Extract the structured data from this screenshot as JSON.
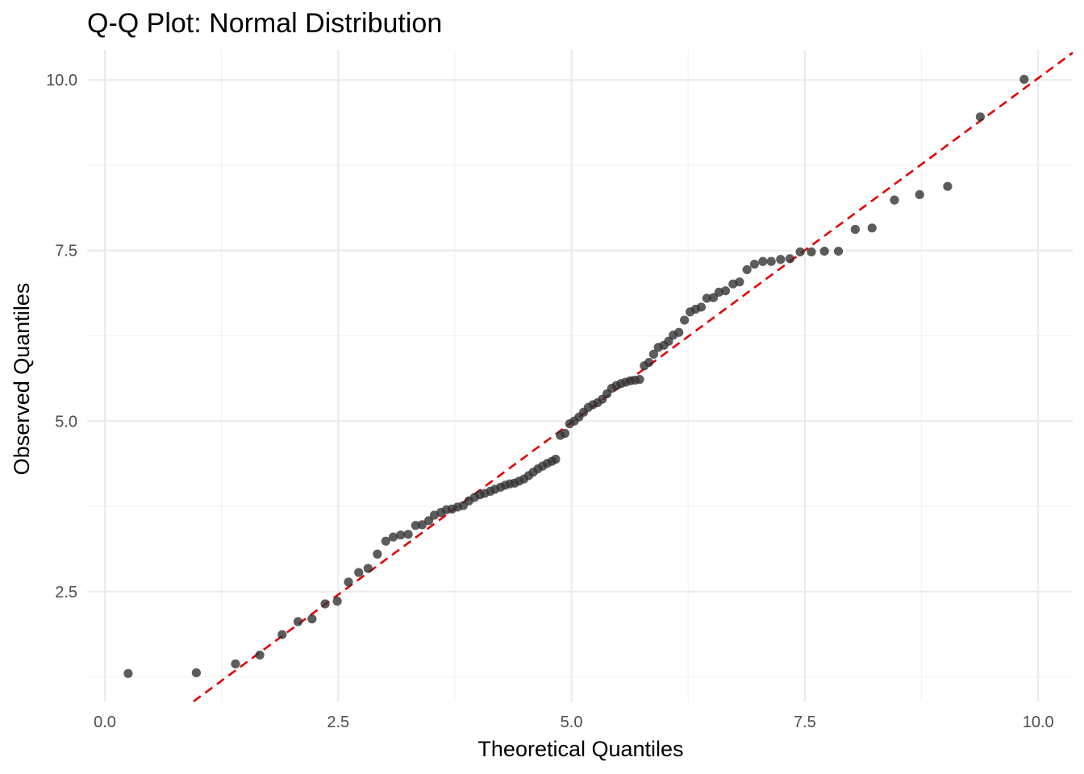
{
  "chart_data": {
    "type": "scatter",
    "title": "Q-Q Plot: Normal Distribution",
    "xlabel": "Theoretical Quantiles",
    "ylabel": "Observed Quantiles",
    "xlim": [
      -0.19,
      10.37
    ],
    "ylim": [
      0.89,
      10.44
    ],
    "x_ticks": [
      0.0,
      2.5,
      5.0,
      7.5,
      10.0
    ],
    "x_tick_labels": [
      "0.0",
      "2.5",
      "5.0",
      "7.5",
      "10.0"
    ],
    "y_ticks": [
      2.5,
      5.0,
      7.5,
      10.0
    ],
    "y_tick_labels": [
      "2.5",
      "5.0",
      "7.5",
      "10.0"
    ],
    "grid": true,
    "colors": {
      "points": "#333333",
      "reference_line": "#e60000",
      "grid": "#ebebeb"
    },
    "reference_line": {
      "style": "dashed",
      "x": [
        0.95,
        10.37
      ],
      "y": [
        0.89,
        10.4
      ]
    },
    "points": [
      [
        0.25,
        1.3
      ],
      [
        0.98,
        1.31
      ],
      [
        1.4,
        1.44
      ],
      [
        1.66,
        1.57
      ],
      [
        1.9,
        1.87
      ],
      [
        2.07,
        2.06
      ],
      [
        2.22,
        2.1
      ],
      [
        2.36,
        2.32
      ],
      [
        2.49,
        2.36
      ],
      [
        2.61,
        2.64
      ],
      [
        2.72,
        2.78
      ],
      [
        2.82,
        2.84
      ],
      [
        2.92,
        3.05
      ],
      [
        3.01,
        3.24
      ],
      [
        3.09,
        3.3
      ],
      [
        3.17,
        3.33
      ],
      [
        3.25,
        3.34
      ],
      [
        3.33,
        3.47
      ],
      [
        3.4,
        3.48
      ],
      [
        3.47,
        3.54
      ],
      [
        3.53,
        3.62
      ],
      [
        3.6,
        3.66
      ],
      [
        3.66,
        3.7
      ],
      [
        3.72,
        3.71
      ],
      [
        3.78,
        3.74
      ],
      [
        3.84,
        3.76
      ],
      [
        3.9,
        3.83
      ],
      [
        3.96,
        3.88
      ],
      [
        4.02,
        3.92
      ],
      [
        4.07,
        3.94
      ],
      [
        4.13,
        3.97
      ],
      [
        4.18,
        4.0
      ],
      [
        4.24,
        4.03
      ],
      [
        4.29,
        4.06
      ],
      [
        4.34,
        4.08
      ],
      [
        4.39,
        4.09
      ],
      [
        4.44,
        4.12
      ],
      [
        4.49,
        4.15
      ],
      [
        4.54,
        4.2
      ],
      [
        4.59,
        4.25
      ],
      [
        4.64,
        4.3
      ],
      [
        4.69,
        4.34
      ],
      [
        4.74,
        4.38
      ],
      [
        4.79,
        4.41
      ],
      [
        4.83,
        4.44
      ],
      [
        4.88,
        4.79
      ],
      [
        4.93,
        4.82
      ],
      [
        4.98,
        4.96
      ],
      [
        5.03,
        5.0
      ],
      [
        5.08,
        5.06
      ],
      [
        5.13,
        5.13
      ],
      [
        5.18,
        5.2
      ],
      [
        5.23,
        5.24
      ],
      [
        5.28,
        5.27
      ],
      [
        5.33,
        5.32
      ],
      [
        5.38,
        5.4
      ],
      [
        5.43,
        5.48
      ],
      [
        5.48,
        5.52
      ],
      [
        5.53,
        5.55
      ],
      [
        5.58,
        5.57
      ],
      [
        5.63,
        5.59
      ],
      [
        5.68,
        5.6
      ],
      [
        5.73,
        5.61
      ],
      [
        5.78,
        5.81
      ],
      [
        5.83,
        5.86
      ],
      [
        5.88,
        5.98
      ],
      [
        5.93,
        6.08
      ],
      [
        5.99,
        6.11
      ],
      [
        6.04,
        6.17
      ],
      [
        6.09,
        6.26
      ],
      [
        6.15,
        6.3
      ],
      [
        6.21,
        6.48
      ],
      [
        6.27,
        6.6
      ],
      [
        6.33,
        6.64
      ],
      [
        6.39,
        6.67
      ],
      [
        6.45,
        6.8
      ],
      [
        6.52,
        6.81
      ],
      [
        6.58,
        6.89
      ],
      [
        6.65,
        6.91
      ],
      [
        6.73,
        7.01
      ],
      [
        6.8,
        7.04
      ],
      [
        6.88,
        7.22
      ],
      [
        6.96,
        7.3
      ],
      [
        7.05,
        7.34
      ],
      [
        7.14,
        7.34
      ],
      [
        7.24,
        7.37
      ],
      [
        7.34,
        7.38
      ],
      [
        7.45,
        7.48
      ],
      [
        7.57,
        7.48
      ],
      [
        7.71,
        7.49
      ],
      [
        7.86,
        7.49
      ],
      [
        8.04,
        7.81
      ],
      [
        8.22,
        7.83
      ],
      [
        8.46,
        8.24
      ],
      [
        8.73,
        8.32
      ],
      [
        9.03,
        8.44
      ],
      [
        9.38,
        9.46
      ],
      [
        9.85,
        10.01
      ]
    ]
  }
}
